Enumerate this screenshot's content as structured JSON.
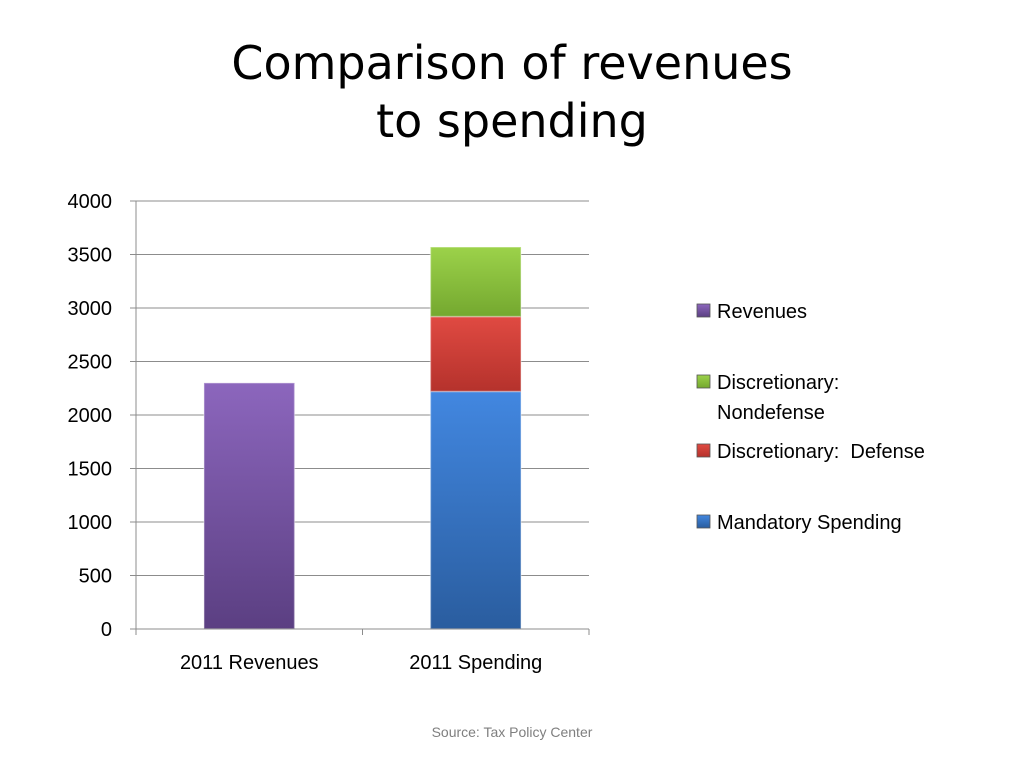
{
  "slide": {
    "title_line1": "Comparison of revenues",
    "title_line2": "to spending",
    "source": "Source: Tax Policy Center"
  },
  "chart_data": {
    "type": "bar",
    "stacked": true,
    "categories": [
      "2011 Revenues",
      "2011 Spending"
    ],
    "series": [
      {
        "name": "Mandatory Spending",
        "color": "#3b7dd8",
        "values": [
          0,
          2220
        ]
      },
      {
        "name": "Discretionary:  Defense",
        "color": "#d9403a",
        "values": [
          0,
          700
        ]
      },
      {
        "name": "Discretionary: Nondefense",
        "color": "#8cc63e",
        "values": [
          0,
          650
        ]
      },
      {
        "name": "Revenues",
        "color": "#7f5aa6",
        "values": [
          2300,
          0
        ]
      }
    ],
    "legend_order": [
      "Revenues",
      "Discretionary: Nondefense",
      "Discretionary:  Defense",
      "Mandatory Spending"
    ],
    "y_ticks": [
      "0",
      "500",
      "1000",
      "1500",
      "2000",
      "2500",
      "3000",
      "3500",
      "4000"
    ],
    "ylim": [
      0,
      4000
    ],
    "grid": true,
    "legend_position": "right"
  }
}
